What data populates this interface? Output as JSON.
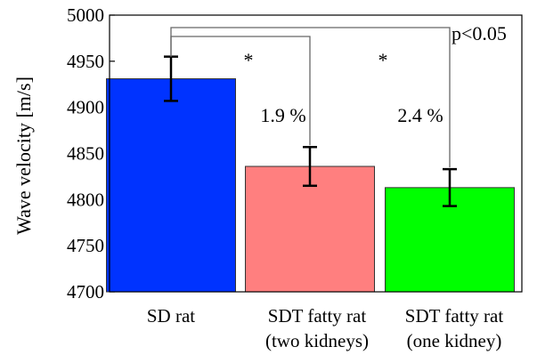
{
  "chart_data": {
    "type": "bar",
    "title": "",
    "xlabel": "",
    "ylabel": "Wave velocity [m/s]",
    "ylim": [
      4700,
      5000
    ],
    "yticks": [
      4700,
      4750,
      4800,
      4850,
      4900,
      4950,
      5000
    ],
    "grid": false,
    "legend": "none",
    "categories": [
      {
        "lines": [
          "SD rat"
        ]
      },
      {
        "lines": [
          "SDT fatty rat",
          "(two kidneys)"
        ]
      },
      {
        "lines": [
          "SDT fatty rat",
          "(one kidney)"
        ]
      }
    ],
    "values": [
      4931,
      4836,
      4813
    ],
    "error": [
      24,
      21,
      20
    ],
    "colors": [
      "#0033ff",
      "#ff7f7f",
      "#00ff00"
    ],
    "annotations": {
      "percent_labels": [
        "1.9 %",
        "2.4 %"
      ],
      "significance": [
        {
          "from": 0,
          "to": 1,
          "label": "*"
        },
        {
          "from": 0,
          "to": 2,
          "label": "*"
        },
        {
          "from": 0,
          "to": 2,
          "label": "p<0.05"
        }
      ]
    }
  }
}
